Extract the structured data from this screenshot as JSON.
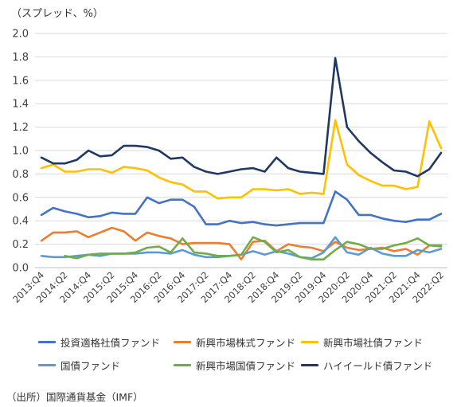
{
  "unit_label": "（スプレッド、%）",
  "source": "（出所）国際通貨基金（IMF）",
  "chart_data": {
    "type": "line",
    "title": "",
    "xlabel": "",
    "ylabel": "",
    "ylim": [
      0,
      2.0
    ],
    "yticks": [
      "0.0",
      "0.2",
      "0.4",
      "0.6",
      "0.8",
      "1.0",
      "1.2",
      "1.4",
      "1.6",
      "1.8",
      "2.0"
    ],
    "grid": "horizontal",
    "legend_position": "bottom",
    "x": [
      "2013:Q4",
      "2014:Q1",
      "2014:Q2",
      "2014:Q3",
      "2014:Q4",
      "2015:Q1",
      "2015:Q2",
      "2015:Q3",
      "2015:Q4",
      "2016:Q1",
      "2016:Q2",
      "2016:Q3",
      "2016:Q4",
      "2017:Q1",
      "2017:Q2",
      "2017:Q3",
      "2017:Q4",
      "2018:Q1",
      "2018:Q2",
      "2018:Q3",
      "2018:Q4",
      "2019:Q1",
      "2019:Q2",
      "2019:Q3",
      "2019:Q4",
      "2020:Q1",
      "2020:Q2",
      "2020:Q3",
      "2020:Q4",
      "2021:Q1",
      "2021:Q2",
      "2021:Q3",
      "2021:Q4",
      "2022:Q1",
      "2022:Q2"
    ],
    "x_tick_labels": [
      "2013:Q4",
      "2014:Q2",
      "2014:Q4",
      "2015:Q2",
      "2015:Q4",
      "2016:Q2",
      "2016:Q4",
      "2017:Q2",
      "2017:Q4",
      "2018:Q2",
      "2018:Q4",
      "2019:Q2",
      "2019:Q4",
      "2020:Q2",
      "2020:Q4",
      "2021:Q2",
      "2021:Q4",
      "2022:Q2"
    ],
    "series": [
      {
        "name": "投資適格社債ファンド",
        "color": "#4472C4",
        "values": [
          0.45,
          0.51,
          0.48,
          0.46,
          0.43,
          0.44,
          0.47,
          0.46,
          0.46,
          0.6,
          0.55,
          0.58,
          0.58,
          0.52,
          0.37,
          0.37,
          0.4,
          0.38,
          0.39,
          0.37,
          0.36,
          0.37,
          0.38,
          0.38,
          0.38,
          0.65,
          0.58,
          0.45,
          0.45,
          0.42,
          0.4,
          0.39,
          0.41,
          0.41,
          0.46
        ]
      },
      {
        "name": "新興市場株式ファンド",
        "color": "#ED7D31",
        "values": [
          0.23,
          0.3,
          0.3,
          0.31,
          0.26,
          0.3,
          0.34,
          0.31,
          0.23,
          0.3,
          0.27,
          0.25,
          0.2,
          0.21,
          0.21,
          0.21,
          0.2,
          0.07,
          0.22,
          0.23,
          0.14,
          0.2,
          0.18,
          0.17,
          0.14,
          0.22,
          0.17,
          0.15,
          0.16,
          0.17,
          0.14,
          0.16,
          0.11,
          0.19,
          0.18
        ]
      },
      {
        "name": "新興市場社債ファンド",
        "color": "#FFC000",
        "values": [
          0.85,
          0.88,
          0.82,
          0.82,
          0.84,
          0.84,
          0.81,
          0.86,
          0.85,
          0.83,
          0.77,
          0.73,
          0.71,
          0.65,
          0.65,
          0.59,
          0.6,
          0.6,
          0.67,
          0.67,
          0.66,
          0.67,
          0.63,
          0.64,
          0.63,
          1.26,
          0.88,
          0.79,
          0.74,
          0.7,
          0.7,
          0.67,
          0.69,
          1.25,
          1.02
        ]
      },
      {
        "name": "国債ファンド",
        "color": "#5B9BD5",
        "values": [
          0.1,
          0.09,
          0.09,
          0.1,
          0.11,
          0.1,
          0.12,
          0.12,
          0.12,
          0.13,
          0.13,
          0.12,
          0.15,
          0.11,
          0.09,
          0.09,
          0.1,
          0.11,
          0.14,
          0.11,
          0.14,
          0.12,
          0.09,
          0.08,
          0.13,
          0.26,
          0.13,
          0.11,
          0.17,
          0.12,
          0.1,
          0.1,
          0.15,
          0.13,
          0.16
        ]
      },
      {
        "name": "新興市場国債ファンド",
        "color": "#70AD47",
        "values": [
          null,
          null,
          0.1,
          0.08,
          0.11,
          0.12,
          0.12,
          0.12,
          0.13,
          0.17,
          0.18,
          0.13,
          0.25,
          0.13,
          0.12,
          0.1,
          0.1,
          0.11,
          0.26,
          0.22,
          0.13,
          0.15,
          0.09,
          0.07,
          0.07,
          0.15,
          0.22,
          0.2,
          0.16,
          0.16,
          0.19,
          0.21,
          0.25,
          0.19,
          0.19
        ]
      },
      {
        "name": "ハイイールド債ファンド",
        "color": "#203864",
        "values": [
          0.94,
          0.89,
          0.89,
          0.92,
          1.0,
          0.95,
          0.96,
          1.04,
          1.04,
          1.03,
          1.0,
          0.93,
          0.94,
          0.86,
          0.82,
          0.8,
          0.82,
          0.84,
          0.85,
          0.82,
          0.94,
          0.85,
          0.82,
          0.81,
          0.8,
          1.79,
          1.2,
          1.08,
          0.98,
          0.9,
          0.83,
          0.82,
          0.78,
          0.84,
          0.98
        ]
      }
    ]
  }
}
